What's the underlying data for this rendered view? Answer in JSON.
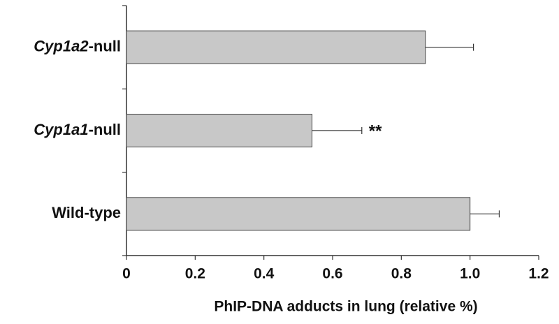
{
  "chart_data": {
    "type": "hbar",
    "categories": [
      "Cyp1a2-null",
      "Cyp1a1-null",
      "Wild-type"
    ],
    "values": [
      0.87,
      0.54,
      1.0
    ],
    "errors": [
      0.14,
      0.145,
      0.085
    ],
    "color": "#c8c8c8",
    "xlabel": "PhIP-DNA adducts in lung (relative %)",
    "xlim": [
      0,
      1.2
    ],
    "xticks": [
      0,
      {
        "value": 0.2,
        "label": "0.2"
      },
      {
        "value": 0.4,
        "label": "0.4"
      },
      {
        "value": 0.6,
        "label": "0.6"
      },
      {
        "value": 0.8,
        "label": "0.8"
      },
      {
        "value": 1.0,
        "label": "1.0"
      },
      {
        "value": 1.2,
        "label": "1.2"
      }
    ],
    "annotations": [
      {
        "category": 1,
        "text": "**"
      }
    ]
  }
}
